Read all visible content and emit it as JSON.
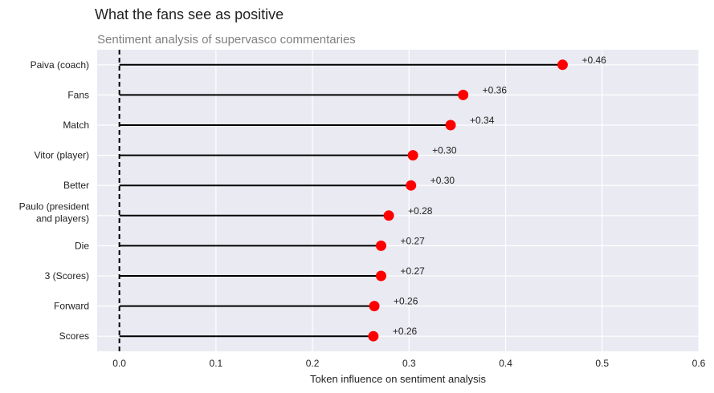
{
  "chart_data": {
    "type": "lollipop",
    "title": "What the fans see as positive",
    "subtitle": "Sentiment analysis of supervasco commentaries",
    "xlabel": "Token influence on sentiment analysis",
    "ylabel": "",
    "xlim": [
      -0.023,
      0.6
    ],
    "x_ticks": [
      0.0,
      0.1,
      0.2,
      0.3,
      0.4,
      0.5,
      0.6
    ],
    "x_tick_labels": [
      "0.0",
      "0.1",
      "0.2",
      "0.3",
      "0.4",
      "0.5",
      "0.6"
    ],
    "grid": true,
    "reference_line": 0.0,
    "categories": [
      "Paiva (coach)",
      "Fans",
      "Match",
      "Vitor (player)",
      "Better",
      "Paulo (president\nand players)",
      "Die",
      "3 (Scores)",
      "Forward",
      "Scores"
    ],
    "values": [
      0.459,
      0.356,
      0.343,
      0.304,
      0.302,
      0.279,
      0.271,
      0.271,
      0.264,
      0.263
    ],
    "value_labels": [
      "+0.46",
      "+0.36",
      "+0.34",
      "+0.30",
      "+0.30",
      "+0.28",
      "+0.27",
      "+0.27",
      "+0.26",
      "+0.26"
    ],
    "colors": {
      "plot_background": "#eaeaf2",
      "grid": "#ffffff",
      "stem": "#000000",
      "marker": "#ff0000"
    }
  }
}
